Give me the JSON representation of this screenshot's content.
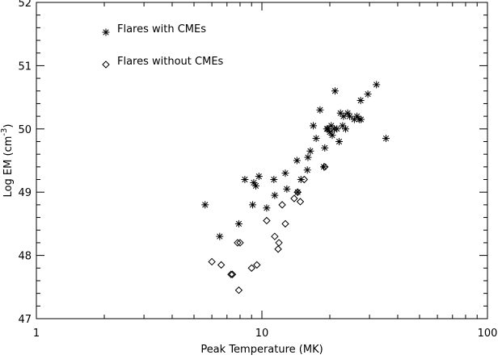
{
  "chart_data": {
    "type": "scatter",
    "xlabel": "Peak Temperature (MK)",
    "ylabel_main": "Log EM (cm",
    "ylabel_sup": "-3",
    "ylabel_close": ")",
    "xscale": "log",
    "xlim": [
      1,
      100
    ],
    "ylim": [
      47,
      52
    ],
    "xticks": [
      1,
      10,
      100
    ],
    "xtick_labels": [
      "1",
      "10",
      "100"
    ],
    "yticks": [
      47,
      48,
      49,
      50,
      51,
      52
    ],
    "ytick_labels": [
      "47",
      "48",
      "49",
      "50",
      "51",
      "52"
    ],
    "grid": false,
    "legend_position": "top-left",
    "series": [
      {
        "name": "Flares with CMEs",
        "marker": "asterisk",
        "x": [
          5.6,
          6.5,
          7.9,
          8.4,
          9.1,
          9.2,
          9.4,
          9.7,
          10.5,
          11.3,
          11.4,
          12.7,
          12.9,
          14.3,
          14.4,
          14.9,
          15.9,
          16.0,
          16.4,
          16.9,
          17.4,
          18.1,
          18.8,
          19.0,
          19.4,
          19.6,
          20.0,
          20.3,
          20.5,
          20.9,
          21.1,
          21.5,
          22.0,
          22.3,
          22.8,
          23.0,
          23.5,
          24.0,
          24.5,
          25.7,
          26.4,
          27.0,
          27.4,
          27.5,
          29.5,
          32.2,
          35.5
        ],
        "y": [
          48.8,
          48.3,
          48.5,
          49.2,
          48.8,
          49.15,
          49.1,
          49.25,
          48.75,
          49.2,
          48.95,
          49.3,
          49.05,
          49.5,
          49.0,
          49.2,
          49.35,
          49.55,
          49.65,
          50.05,
          49.85,
          50.3,
          49.4,
          49.7,
          50.0,
          50.0,
          49.95,
          50.05,
          49.9,
          50.0,
          50.6,
          50.0,
          49.8,
          50.25,
          50.05,
          50.2,
          50.0,
          50.25,
          50.2,
          50.15,
          50.2,
          50.15,
          50.45,
          50.15,
          50.55,
          50.7,
          49.85
        ]
      },
      {
        "name": "Flares without CMEs",
        "marker": "diamond",
        "x": [
          6.0,
          6.6,
          7.3,
          7.4,
          7.8,
          8.0,
          7.9,
          9.0,
          9.5,
          10.5,
          11.4,
          11.9,
          11.8,
          12.3,
          12.7,
          13.9,
          14.4,
          14.8,
          15.4,
          19.0
        ],
        "y": [
          47.9,
          47.85,
          47.7,
          47.7,
          48.2,
          48.2,
          47.45,
          47.8,
          47.85,
          48.55,
          48.3,
          48.2,
          48.1,
          48.8,
          48.5,
          48.9,
          49.0,
          48.85,
          49.2,
          49.4
        ]
      }
    ]
  }
}
